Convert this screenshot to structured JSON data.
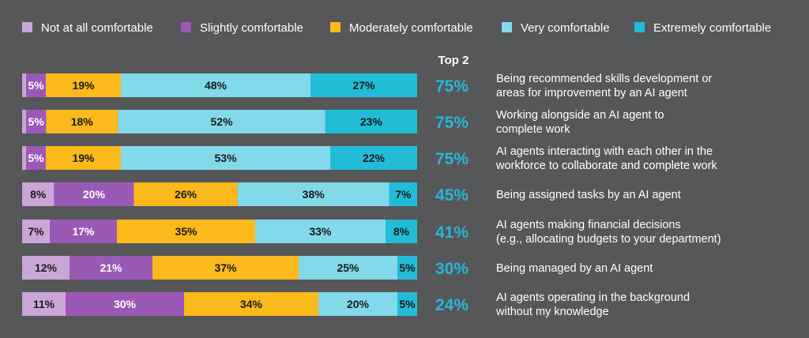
{
  "chart_data": {
    "type": "bar",
    "orientation": "horizontal",
    "stacked": true,
    "legend_position": "top",
    "top2_header": "Top 2",
    "series": [
      {
        "name": "Not at all comfortable",
        "color": "#c9a6d6",
        "values": [
          1,
          1,
          1,
          8,
          7,
          12,
          11
        ]
      },
      {
        "name": "Slightly comfortable",
        "color": "#9b59b6",
        "values": [
          5,
          5,
          5,
          20,
          17,
          21,
          30
        ]
      },
      {
        "name": "Moderately comfortable",
        "color": "#fbb91b",
        "values": [
          19,
          18,
          19,
          26,
          35,
          37,
          34
        ]
      },
      {
        "name": "Very comfortable",
        "color": "#82d9ea",
        "values": [
          48,
          52,
          53,
          38,
          33,
          25,
          20
        ]
      },
      {
        "name": "Extremely comfortable",
        "color": "#23bcd8",
        "values": [
          27,
          23,
          22,
          7,
          8,
          5,
          5
        ]
      }
    ],
    "data_labels": [
      [
        "",
        "5%",
        "19%",
        "48%",
        "27%"
      ],
      [
        "",
        "5%",
        "18%",
        "52%",
        "23%"
      ],
      [
        "",
        "5%",
        "19%",
        "53%",
        "22%"
      ],
      [
        "8%",
        "20%",
        "26%",
        "38%",
        "7%"
      ],
      [
        "7%",
        "17%",
        "35%",
        "33%",
        "8%"
      ],
      [
        "12%",
        "21%",
        "37%",
        "25%",
        "5%"
      ],
      [
        "11%",
        "30%",
        "34%",
        "20%",
        "5%"
      ]
    ],
    "top2": [
      "75%",
      "75%",
      "75%",
      "45%",
      "41%",
      "30%",
      "24%"
    ],
    "categories": [
      [
        "Being recommended skills development or",
        "areas for improvement by an AI agent"
      ],
      [
        "Working alongside an AI agent to",
        "complete work"
      ],
      [
        "AI agents interacting with each other in the",
        "workforce to collaborate and complete work"
      ],
      [
        "Being assigned tasks by an AI agent"
      ],
      [
        "AI agents making financial decisions",
        "(e.g., allocating budgets to your department)"
      ],
      [
        "Being managed by an AI agent"
      ],
      [
        "AI agents operating in the background",
        "without my knowledge"
      ]
    ]
  }
}
